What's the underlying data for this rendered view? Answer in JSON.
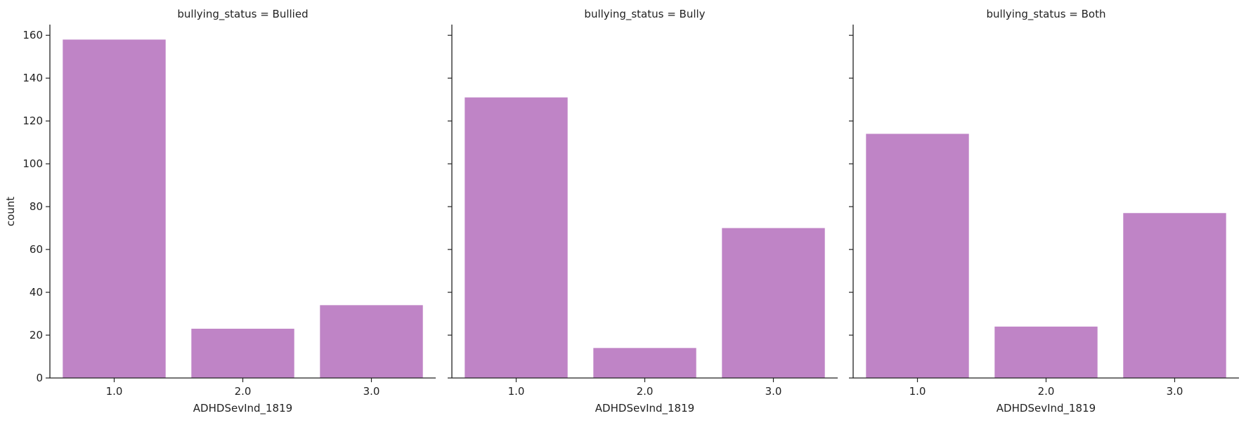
{
  "bar_color": "#bf84c6",
  "chart_data": [
    {
      "type": "bar",
      "title": "bullying_status = Bullied",
      "categories": [
        "1.0",
        "2.0",
        "3.0"
      ],
      "values": [
        158,
        23,
        34
      ],
      "xlabel": "ADHDSevInd_1819",
      "ylabel": "count",
      "ylim": [
        0,
        165
      ],
      "yticks": [
        0,
        20,
        40,
        60,
        80,
        100,
        120,
        140,
        160
      ],
      "grid": false
    },
    {
      "type": "bar",
      "title": "bullying_status = Bully",
      "categories": [
        "1.0",
        "2.0",
        "3.0"
      ],
      "values": [
        131,
        14,
        70
      ],
      "xlabel": "ADHDSevInd_1819",
      "ylabel": "",
      "ylim": [
        0,
        165
      ],
      "yticks": [
        0,
        20,
        40,
        60,
        80,
        100,
        120,
        140,
        160
      ],
      "grid": false
    },
    {
      "type": "bar",
      "title": "bullying_status = Both",
      "categories": [
        "1.0",
        "2.0",
        "3.0"
      ],
      "values": [
        114,
        24,
        77
      ],
      "xlabel": "ADHDSevInd_1819",
      "ylabel": "",
      "ylim": [
        0,
        165
      ],
      "yticks": [
        0,
        20,
        40,
        60,
        80,
        100,
        120,
        140,
        160
      ],
      "grid": false
    }
  ]
}
